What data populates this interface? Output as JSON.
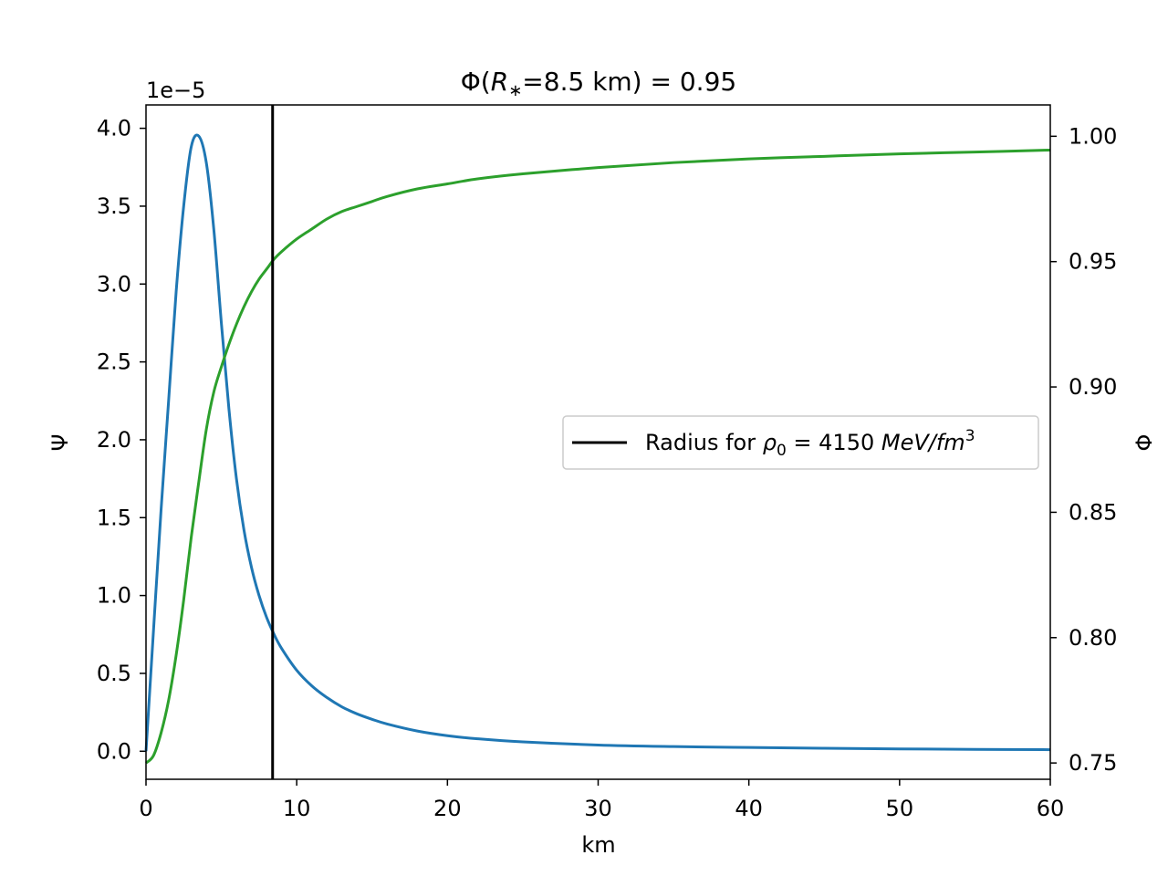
{
  "chart_data": {
    "type": "line",
    "title": "Φ(R∗=8.5 km) = 0.95",
    "title_parts": {
      "prefix": "Φ(",
      "var": "R",
      "sub": "∗",
      "suffix": "=8.5 km) = 0.95"
    },
    "xlabel": "km",
    "ylabel_left": "Ψ",
    "ylabel_right": "Φ",
    "left_axis_multiplier": "1e−5",
    "xlim": [
      0,
      60
    ],
    "ylim_left": [
      -0.18,
      4.15
    ],
    "ylim_right": [
      0.7435,
      1.0125
    ],
    "x_ticks": [
      0,
      10,
      20,
      30,
      40,
      50,
      60
    ],
    "x_tick_labels": [
      "0",
      "10",
      "20",
      "30",
      "40",
      "50",
      "60"
    ],
    "y_left_ticks": [
      0.0,
      0.5,
      1.0,
      1.5,
      2.0,
      2.5,
      3.0,
      3.5,
      4.0
    ],
    "y_left_tick_labels": [
      "0.0",
      "0.5",
      "1.0",
      "1.5",
      "2.0",
      "2.5",
      "3.0",
      "3.5",
      "4.0"
    ],
    "y_right_ticks": [
      0.75,
      0.8,
      0.85,
      0.9,
      0.95,
      1.0
    ],
    "y_right_tick_labels": [
      "0.75",
      "0.80",
      "0.85",
      "0.90",
      "0.95",
      "1.00"
    ],
    "colors": {
      "psi": "#1f77b4",
      "phi": "#2ca02c",
      "radius": "#000000"
    },
    "series": [
      {
        "name": "Ψ",
        "axis": "left",
        "x": [
          0,
          0.5,
          1,
          1.5,
          2,
          2.5,
          3,
          3.5,
          4,
          4.5,
          5,
          5.5,
          6,
          6.5,
          7,
          7.5,
          8,
          8.5,
          9,
          10,
          11,
          12,
          13,
          14,
          15,
          16,
          18,
          20,
          22,
          25,
          30,
          35,
          40,
          45,
          50,
          55,
          60
        ],
        "y": [
          0.0,
          0.78,
          1.55,
          2.25,
          2.95,
          3.5,
          3.88,
          3.95,
          3.78,
          3.35,
          2.75,
          2.2,
          1.75,
          1.42,
          1.18,
          1.0,
          0.86,
          0.75,
          0.66,
          0.52,
          0.42,
          0.345,
          0.285,
          0.24,
          0.205,
          0.175,
          0.13,
          0.1,
          0.08,
          0.06,
          0.04,
          0.03,
          0.024,
          0.019,
          0.015,
          0.012,
          0.01
        ]
      },
      {
        "name": "Φ",
        "axis": "right",
        "x": [
          0,
          0.5,
          1,
          1.5,
          2,
          2.5,
          3,
          3.5,
          4,
          4.5,
          5,
          5.5,
          6,
          6.5,
          7,
          7.5,
          8,
          8.5,
          9,
          10,
          11,
          12,
          13,
          14,
          15,
          16,
          18,
          20,
          22,
          25,
          30,
          35,
          40,
          45,
          50,
          55,
          60
        ],
        "y": [
          0.75,
          0.753,
          0.762,
          0.775,
          0.793,
          0.815,
          0.84,
          0.862,
          0.883,
          0.898,
          0.908,
          0.917,
          0.925,
          0.932,
          0.938,
          0.943,
          0.947,
          0.951,
          0.954,
          0.959,
          0.963,
          0.967,
          0.97,
          0.972,
          0.974,
          0.976,
          0.979,
          0.981,
          0.983,
          0.985,
          0.9875,
          0.9895,
          0.991,
          0.992,
          0.993,
          0.9937,
          0.9945
        ]
      }
    ],
    "vertical_line": {
      "x": 8.4
    },
    "legend": {
      "location": "center-right",
      "entry_prefix": "Radius for ",
      "rho": "ρ",
      "rho_sub": "0",
      "equals": " = 4150 ",
      "unit": "MeV/fm",
      "unit_sup": "3",
      "full_text": "Radius for ρ0 = 4150 MeV/fm3"
    }
  }
}
